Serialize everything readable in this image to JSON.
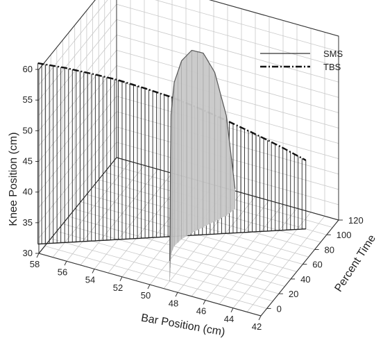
{
  "chart_data": {
    "type": "line",
    "subtype": "3d-line-with-drop-lines",
    "xlabel": "Bar Position (cm)",
    "ylabel": "Knee Position (cm)",
    "zlabel": "Percent Time",
    "xlim": [
      58,
      42
    ],
    "ylim": [
      30,
      60
    ],
    "zlim": [
      -10,
      120
    ],
    "x_ticks": [
      58,
      56,
      54,
      52,
      50,
      48,
      46,
      44,
      42
    ],
    "y_ticks": [
      30,
      35,
      40,
      45,
      50,
      55,
      60
    ],
    "z_ticks": [
      0,
      20,
      40,
      60,
      80,
      100,
      120
    ],
    "grid": true,
    "legend_position": "top-right",
    "series": [
      {
        "name": "SMS",
        "line_style": "solid",
        "color": "#555555",
        "fill": "#c8c8c8",
        "bar_position": [
          49.0,
          49.4,
          49.8,
          50.2,
          50.4,
          50.3,
          50.0,
          49.6,
          49.2,
          48.8,
          48.6
        ],
        "percent_time": [
          0,
          10,
          20,
          30,
          40,
          50,
          60,
          70,
          80,
          90,
          100
        ],
        "knee_position": [
          33.3,
          40.8,
          47.4,
          52.8,
          56.7,
          59.1,
          59.8,
          58.4,
          54.3,
          46.3,
          33.3
        ]
      },
      {
        "name": "TBS",
        "line_style": "dash-dot",
        "color": "#111111",
        "bar_position": [
          58.5,
          57.0,
          55.5,
          54.0,
          52.5,
          51.0,
          49.5,
          48.0,
          46.5,
          45.0,
          43.5
        ],
        "percent_time": [
          0,
          10,
          20,
          30,
          40,
          50,
          60,
          70,
          80,
          90,
          100
        ],
        "knee_position": [
          59.5,
          58.5,
          57.3,
          56.0,
          54.4,
          52.7,
          50.7,
          48.5,
          46.2,
          43.8,
          41.2
        ]
      }
    ]
  }
}
